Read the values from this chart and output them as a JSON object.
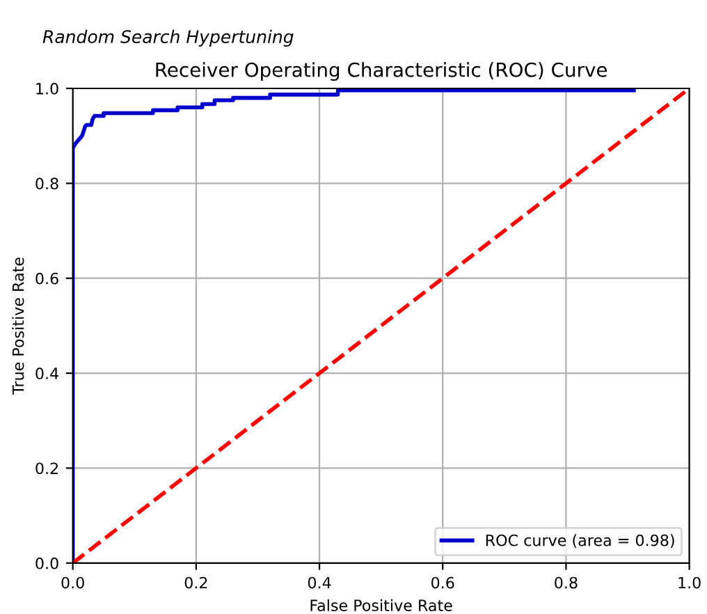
{
  "chart_data": {
    "type": "line",
    "subtitle": "Random Search Hypertuning",
    "title": "Receiver Operating Characteristic (ROC) Curve",
    "xlabel": "False Positive Rate",
    "ylabel": "True Positive Rate",
    "series": [
      {
        "name": "ROC curve (area = 0.98)",
        "color": "#0000cc",
        "line_style": "solid",
        "x": [
          0,
          0,
          0.005,
          0.015,
          0.02,
          0.022,
          0.03,
          0.032,
          0.035,
          0.05,
          0.05,
          0.13,
          0.13,
          0.17,
          0.17,
          0.21,
          0.21,
          0.23,
          0.23,
          0.26,
          0.26,
          0.32,
          0.32,
          0.43,
          0.43,
          0.91
        ],
        "values": [
          0,
          0.875,
          0.885,
          0.9,
          0.92,
          0.923,
          0.923,
          0.935,
          0.942,
          0.942,
          0.948,
          0.948,
          0.954,
          0.954,
          0.96,
          0.96,
          0.967,
          0.967,
          0.975,
          0.975,
          0.98,
          0.98,
          0.987,
          0.987,
          0.996,
          0.996
        ]
      },
      {
        "color": "#ff0000",
        "line_style": "dashed",
        "x": [
          0,
          1
        ],
        "values": [
          0,
          1
        ]
      }
    ],
    "xlim": [
      0,
      1
    ],
    "ylim": [
      0,
      1
    ],
    "xticks": [
      {
        "value": 0,
        "label": "0.0"
      },
      0.2,
      0.4,
      0.6,
      0.8,
      {
        "value": 1,
        "label": "1.0"
      }
    ],
    "yticks": [
      {
        "value": 0,
        "label": "0.0"
      },
      0.2,
      0.4,
      0.6,
      0.8,
      {
        "value": 1,
        "label": "1.0"
      }
    ],
    "grid": true,
    "legend": "bottom right"
  }
}
